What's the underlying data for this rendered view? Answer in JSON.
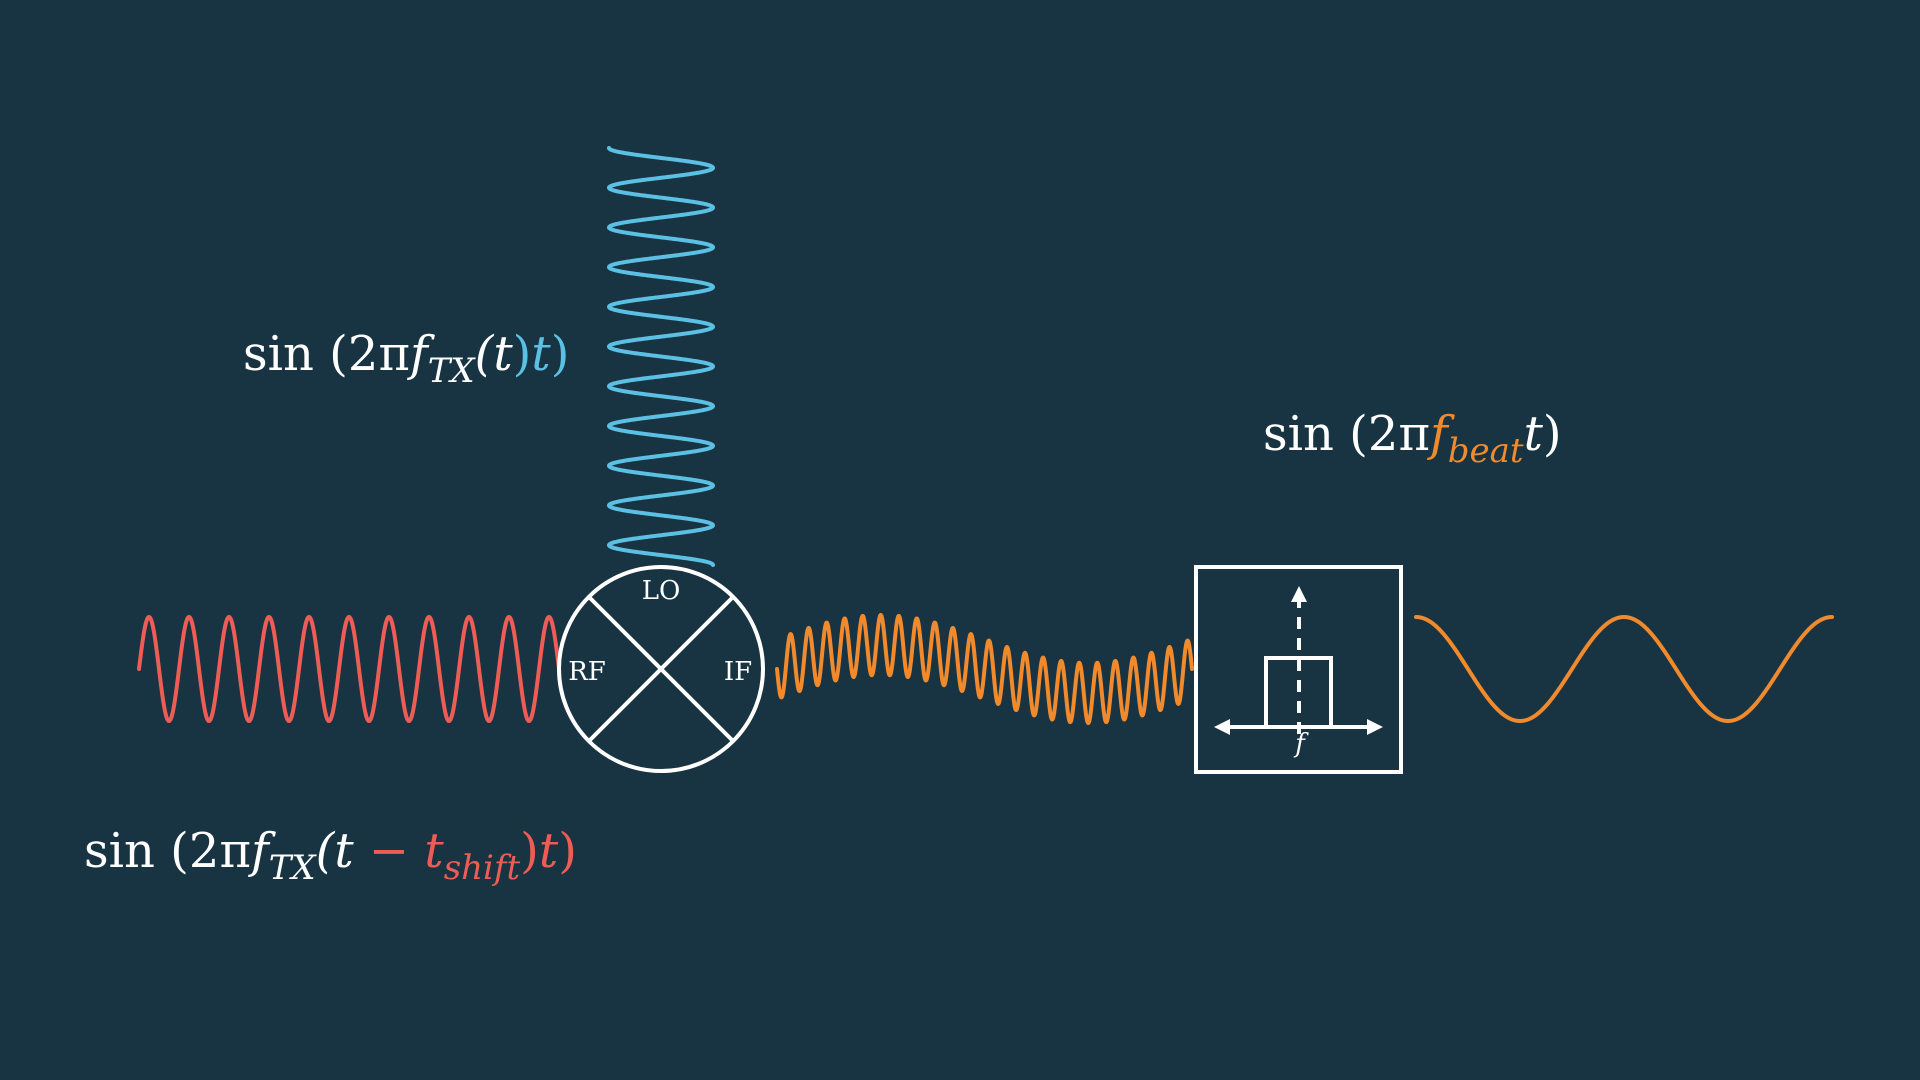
{
  "mixer": {
    "port_lo": "LO",
    "port_rf": "RF",
    "port_if": "IF"
  },
  "filter": {
    "axis_label": "f"
  },
  "equations": {
    "lo": {
      "fn": "sin",
      "open": "(2π",
      "f": "f",
      "sub_tx": "TX",
      "t_open": "(t",
      "t_close": ")",
      "t": "t",
      "close": ")"
    },
    "rf": {
      "fn": "sin",
      "open": "(2π",
      "f": "f",
      "sub_tx": "TX",
      "t_open": "(t",
      "minus": "−",
      "t_shift": "t",
      "sub_shift": "shift",
      "t_close": ")",
      "t": "t",
      "close": ")"
    },
    "beat": {
      "fn": "sin",
      "open": "(2π",
      "f": "f",
      "sub_beat": "beat",
      "t": "t",
      "close": ")"
    }
  },
  "colors": {
    "background": "#183341",
    "lo_wave": "#5bc0e3",
    "rf_wave": "#ee5d55",
    "if_wave": "#f08a2c",
    "foreground": "#ffffff"
  }
}
